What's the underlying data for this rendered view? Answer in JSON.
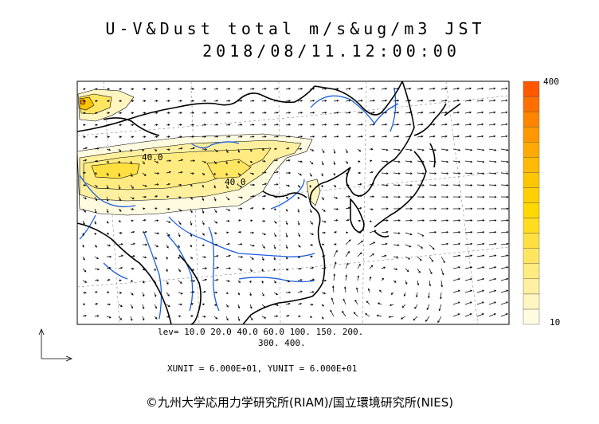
{
  "title_line1": "U-V&Dust total m/s&ug/m3 JST",
  "title_line2": "2018/08/11.12:00:00",
  "colorbar": {
    "max_label": "400",
    "min_label": "10",
    "colors": [
      "#fffbe0",
      "#fff5c0",
      "#fff0a0",
      "#ffeb80",
      "#ffe560",
      "#ffe040",
      "#ffdc20",
      "#ffd800",
      "#ffd000",
      "#ffc600",
      "#ffb900",
      "#ffaa00",
      "#ff9800",
      "#ff8400",
      "#ff6e00",
      "#ff5800"
    ]
  },
  "levels_line1": "lev=  10.0  20.0  40.0  60.0  100.  150.  200.",
  "levels_line2": "300.  400.",
  "units_line": "XUNIT = 6.000E+01, YUNIT = 6.000E+01",
  "contour_labels": [
    "40.0",
    "40.0"
  ],
  "credit": "©九州大学応用力学研究所(RIAM)/国立環境研究所(NIES)"
}
